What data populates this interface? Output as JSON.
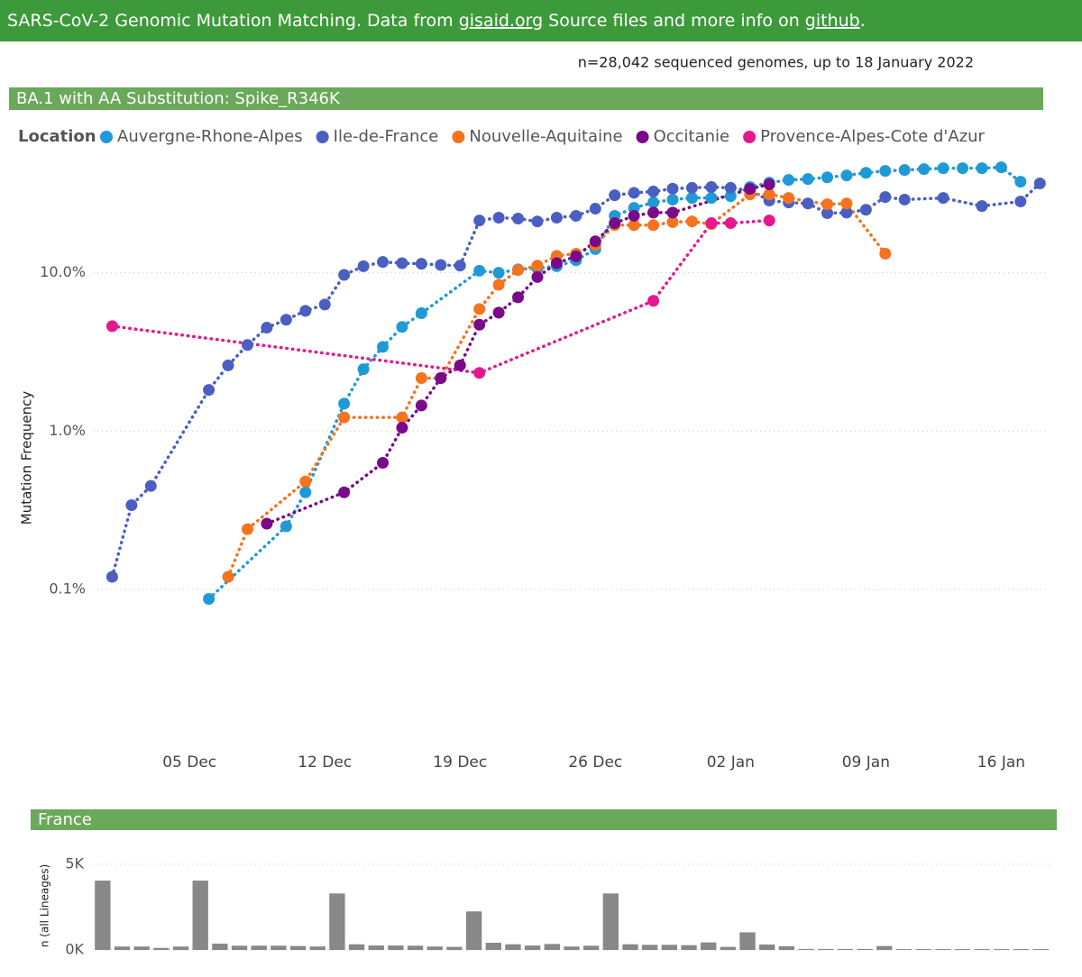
{
  "header": [
    "SARS-CoV-2 Genomic Mutation Matching. Data from ",
    "gisaid.org",
    " Source files and more info on ",
    "github",
    "."
  ],
  "subtitle": "n=28,042 sequenced genomes, up to 18 January 2022",
  "chart_data": [
    {
      "type": "line",
      "title": "BA.1 with AA Substitution: Spike_R346K",
      "legend_title": "Location",
      "ylabel": "Mutation Frequency",
      "yscale": "log",
      "grid": true,
      "xlim": [
        0,
        49.5
      ],
      "ylim": [
        0.01,
        60
      ],
      "xticks": [
        {
          "value": 5,
          "label": "05 Dec"
        },
        {
          "value": 12,
          "label": "12 Dec"
        },
        {
          "value": 19,
          "label": "19 Dec"
        },
        {
          "value": 26,
          "label": "26 Dec"
        },
        {
          "value": 33,
          "label": "02 Jan"
        },
        {
          "value": 40,
          "label": "09 Jan"
        },
        {
          "value": 47,
          "label": "16 Jan"
        }
      ],
      "yticks": [
        {
          "value": 10,
          "label": "10.0%"
        },
        {
          "value": 1,
          "label": "1.0%"
        },
        {
          "value": 0.1,
          "label": "0.1%"
        }
      ],
      "series": [
        {
          "name": "Auvergne-Rhone-Alpes",
          "color": "#1f9ad6",
          "x": [
            6,
            10,
            11,
            13,
            14,
            15,
            16,
            17,
            20,
            21,
            22,
            23,
            24,
            25,
            26,
            27,
            28,
            29,
            30,
            31,
            32,
            33,
            34,
            35,
            36,
            37,
            38,
            39,
            40,
            41,
            42,
            43,
            44,
            45,
            46,
            47,
            48
          ],
          "values": [
            0.087,
            0.25,
            0.41,
            1.49,
            2.46,
            3.4,
            4.55,
            5.55,
            10.3,
            10,
            10.5,
            10.7,
            11,
            12,
            14.1,
            22.9,
            25.7,
            27.8,
            29,
            29.7,
            29.7,
            30.5,
            34.8,
            37.1,
            38.6,
            39.1,
            40.1,
            41.2,
            42.8,
            44,
            44.6,
            45.2,
            45.8,
            45.8,
            45.8,
            46.4,
            37.6
          ]
        },
        {
          "name": "Ile-de-France",
          "color": "#4a5fc1",
          "x": [
            1,
            2,
            3,
            6,
            7,
            8,
            9,
            10,
            11,
            12,
            13,
            14,
            15,
            16,
            17,
            18,
            19,
            20,
            21,
            22,
            23,
            24,
            25,
            26,
            27,
            28,
            29,
            30,
            31,
            32,
            33,
            34,
            35,
            36,
            37,
            38,
            39,
            40,
            41,
            42,
            44,
            46,
            48,
            49
          ],
          "values": [
            0.12,
            0.34,
            0.45,
            1.82,
            2.6,
            3.5,
            4.5,
            5.05,
            5.75,
            6.3,
            9.7,
            11,
            11.7,
            11.5,
            11.4,
            11.2,
            11.1,
            21.4,
            22.3,
            22,
            21.1,
            22.3,
            22.9,
            25.4,
            30.9,
            32,
            32.6,
            34,
            34.4,
            34.8,
            34.4,
            33,
            28.6,
            27.8,
            27.4,
            23.8,
            24,
            25,
            30.1,
            29,
            29.7,
            26.4,
            28.2,
            36.7
          ]
        },
        {
          "name": "Nouvelle-Aquitaine",
          "color": "#f5731f",
          "x": [
            7,
            8,
            11,
            13,
            16,
            17,
            18,
            20,
            21,
            22,
            23,
            24,
            25,
            26,
            27,
            28,
            29,
            30,
            31,
            32,
            34,
            35,
            36,
            38,
            39,
            41
          ],
          "values": [
            0.12,
            0.24,
            0.48,
            1.22,
            1.22,
            2.16,
            2.16,
            5.9,
            8.4,
            10.4,
            11.1,
            12.8,
            13.2,
            15,
            20,
            20,
            20,
            20.9,
            21.1,
            20.3,
            31.3,
            31.3,
            29.7,
            27.1,
            27.4,
            13.2
          ]
        },
        {
          "name": "Occitanie",
          "color": "#7a0a8a",
          "x": [
            9,
            13,
            15,
            16,
            17,
            18,
            19,
            20,
            21,
            22,
            23,
            24,
            25,
            26,
            27,
            28,
            29,
            30,
            34,
            35
          ],
          "values": [
            0.26,
            0.41,
            0.63,
            1.05,
            1.45,
            2.16,
            2.6,
            4.7,
            5.6,
            7,
            9.4,
            11.5,
            12.7,
            15.8,
            20.6,
            22.9,
            24,
            24,
            33.9,
            36.2
          ]
        },
        {
          "name": "Provence-Alpes-Cote d'Azur",
          "color": "#e5188f",
          "x": [
            1,
            20,
            29,
            32,
            33,
            35
          ],
          "values": [
            4.6,
            2.33,
            6.65,
            20.6,
            20.6,
            21.4
          ]
        }
      ]
    },
    {
      "type": "bar",
      "title": "France",
      "ylabel": "n (all Lineages)",
      "color": "#888888",
      "grid": true,
      "ylim": [
        0,
        5000
      ],
      "yticks": [
        {
          "value": 5000,
          "label": "5K"
        },
        {
          "value": 0,
          "label": "0K"
        }
      ],
      "categories": [
        null,
        null,
        null,
        null,
        null,
        null,
        null,
        null,
        null,
        null,
        null,
        null,
        null,
        null,
        null,
        null,
        null,
        null,
        null,
        null,
        null,
        null,
        null,
        null,
        null,
        null,
        null,
        null,
        null,
        null,
        null,
        null,
        null,
        null,
        null,
        null,
        null,
        null,
        null,
        null,
        null,
        null,
        null,
        null,
        null,
        null,
        null,
        null,
        null
      ],
      "values": [
        4050,
        200,
        200,
        120,
        200,
        4050,
        370,
        250,
        250,
        250,
        230,
        200,
        3300,
        330,
        260,
        260,
        250,
        200,
        180,
        2250,
        420,
        330,
        260,
        350,
        200,
        250,
        3300,
        330,
        300,
        300,
        280,
        440,
        180,
        1030,
        320,
        220,
        60,
        60,
        60,
        60,
        230,
        50,
        50,
        50,
        50,
        50,
        50,
        50,
        50
      ]
    }
  ]
}
